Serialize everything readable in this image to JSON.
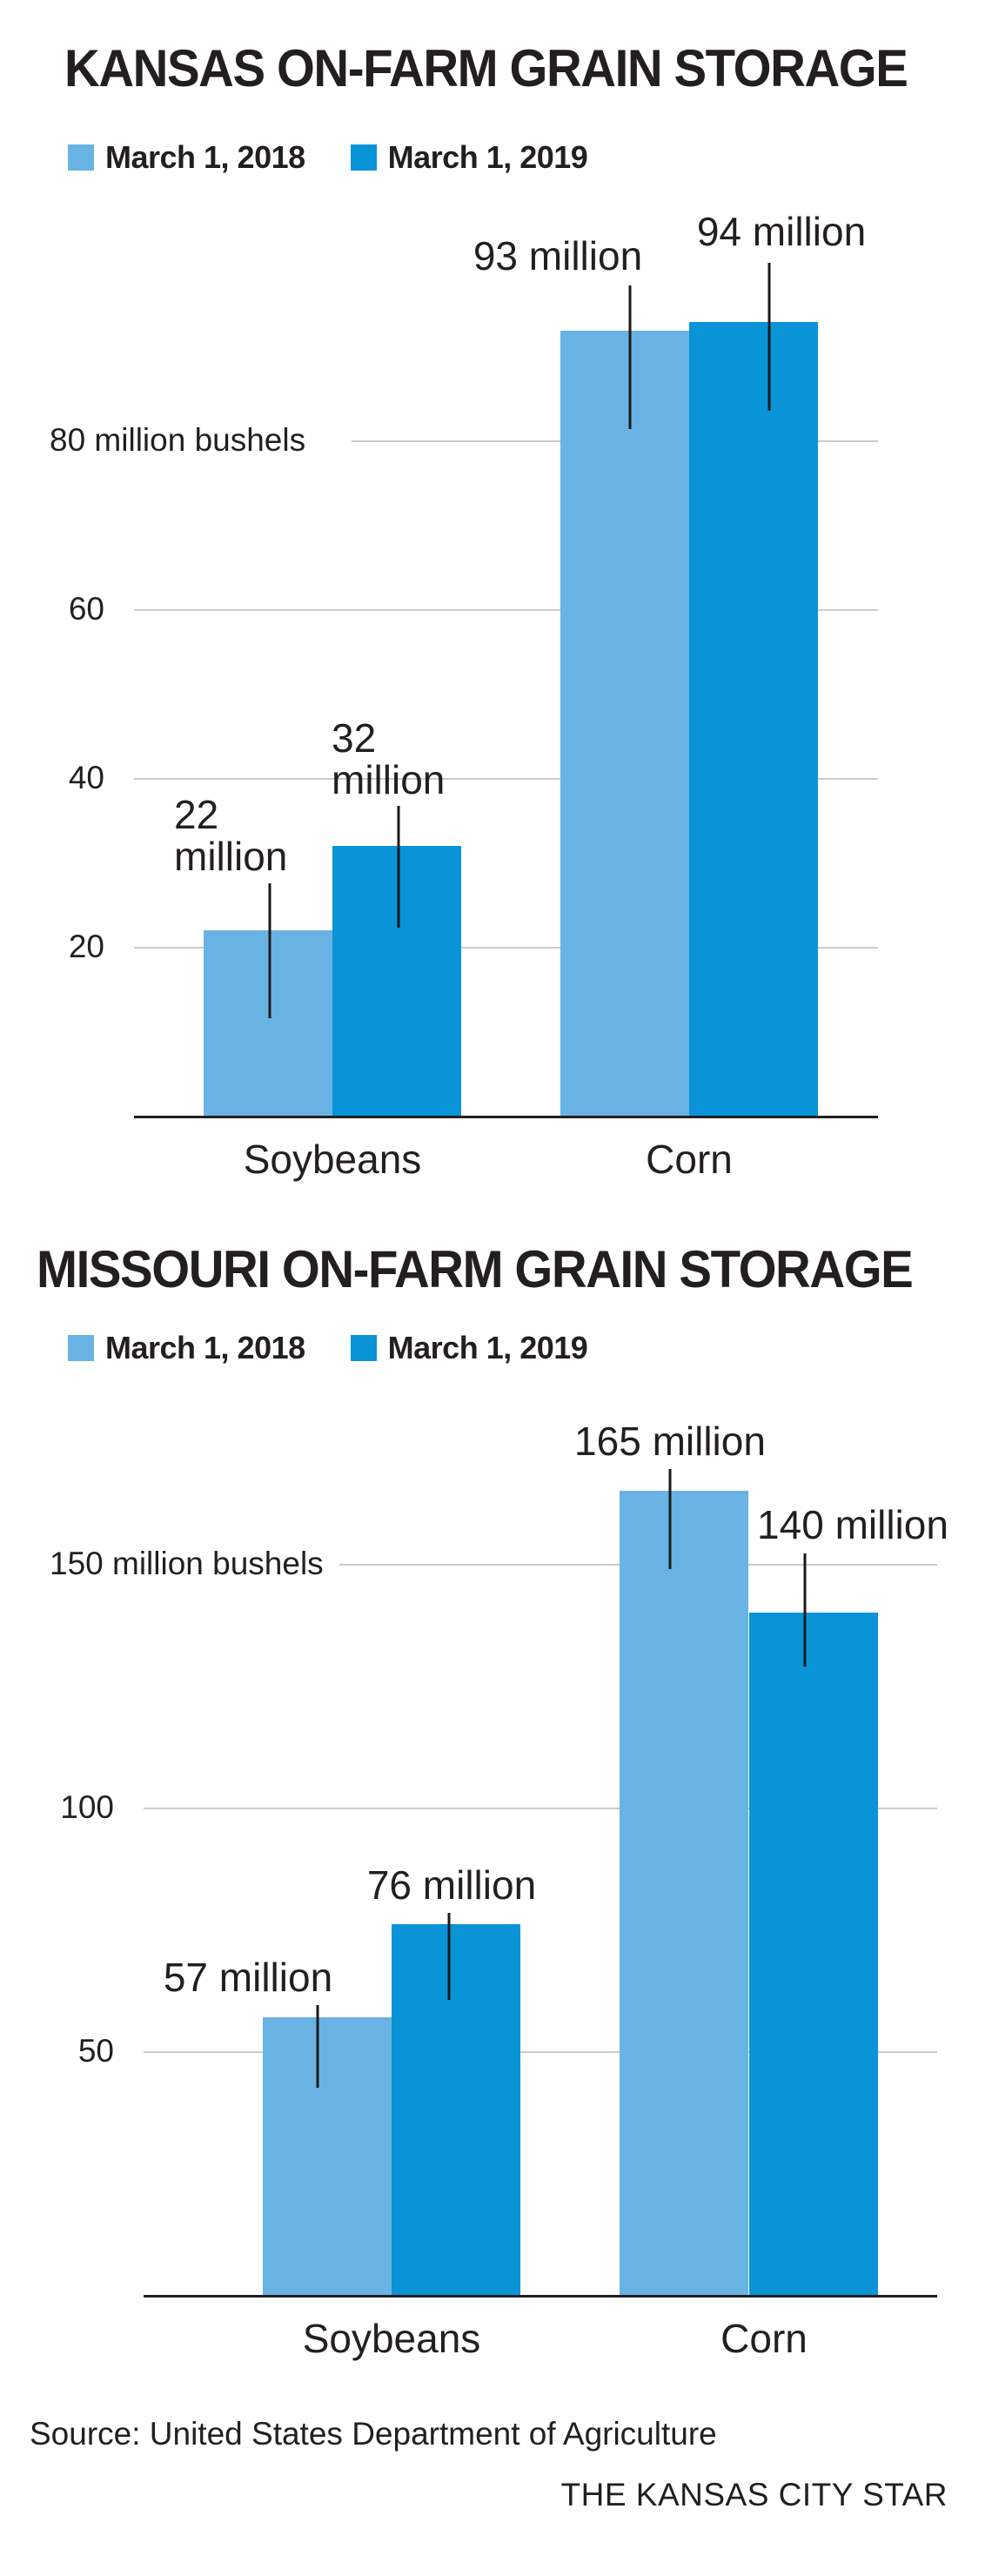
{
  "colors": {
    "series_2018": "#68B3E4",
    "series_2019": "#0994D8",
    "gridline": "#CBCBCB",
    "axis": "#231F20",
    "text": "#231F20",
    "background": "#FFFFFF"
  },
  "footer": {
    "source": "Source: United States Department of Agriculture",
    "credit": "THE KANSAS CITY STAR"
  },
  "chart_data": [
    {
      "type": "bar",
      "title": "KANSAS ON-FARM GRAIN STORAGE",
      "categories": [
        "Soybeans",
        "Corn"
      ],
      "series": [
        {
          "name": "March 1, 2018",
          "color": "#68B3E4",
          "values": [
            22,
            93
          ]
        },
        {
          "name": "March 1, 2019",
          "color": "#0994D8",
          "values": [
            32,
            94
          ]
        }
      ],
      "unit": "million bushels",
      "yticks": [
        20,
        40,
        60,
        80
      ],
      "ytick_labels": [
        "20",
        "40",
        "60",
        "80 million bushels"
      ],
      "ylim": [
        0,
        107
      ],
      "grid": true,
      "legend_position": "top-left",
      "annotations": [
        "22\nmillion",
        "32\nmillion",
        "93 million",
        "94 million"
      ]
    },
    {
      "type": "bar",
      "title": "MISSOURI ON-FARM GRAIN STORAGE",
      "categories": [
        "Soybeans",
        "Corn"
      ],
      "series": [
        {
          "name": "March 1, 2018",
          "color": "#68B3E4",
          "values": [
            57,
            165
          ]
        },
        {
          "name": "March 1, 2019",
          "color": "#0994D8",
          "values": [
            76,
            140
          ]
        }
      ],
      "unit": "million bushels",
      "yticks": [
        50,
        100,
        150
      ],
      "ytick_labels": [
        "50",
        "100",
        "150 million bushels"
      ],
      "ylim": [
        0,
        182
      ],
      "grid": true,
      "legend_position": "top-left",
      "annotations": [
        "57 million",
        "76 million",
        "165 million",
        "140 million"
      ]
    }
  ]
}
